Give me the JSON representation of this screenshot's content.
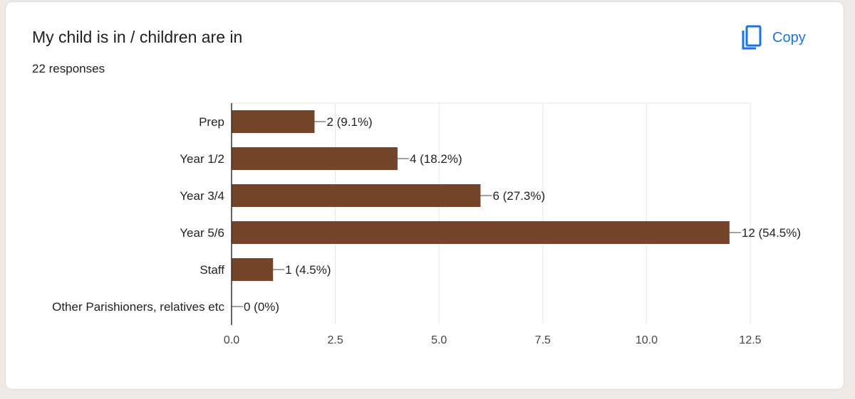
{
  "header": {
    "title": "My child is in / children are in",
    "responses": "22 responses",
    "copy_label": "Copy",
    "copy_icon": "copy-icon"
  },
  "chart_data": {
    "type": "bar",
    "orientation": "horizontal",
    "categories": [
      "Prep",
      "Year 1/2",
      "Year 3/4",
      "Year 5/6",
      "Staff",
      "Other Parishioners, relatives etc"
    ],
    "values": [
      2,
      4,
      6,
      12,
      1,
      0
    ],
    "data_labels": [
      "2 (9.1%)",
      "4 (18.2%)",
      "6 (27.3%)",
      "12 (54.5%)",
      "1 (4.5%)",
      "0 (0%)"
    ],
    "xlim": [
      0,
      12.5
    ],
    "x_ticks": [
      0,
      2.5,
      5,
      7.5,
      10,
      12.5
    ],
    "x_tick_labels": [
      "0.0",
      "2.5",
      "5.0",
      "7.5",
      "10.0",
      "12.5"
    ],
    "grid": true,
    "legend": "none",
    "bar_color": "#74442b",
    "accent_color": "#1a73e8"
  }
}
